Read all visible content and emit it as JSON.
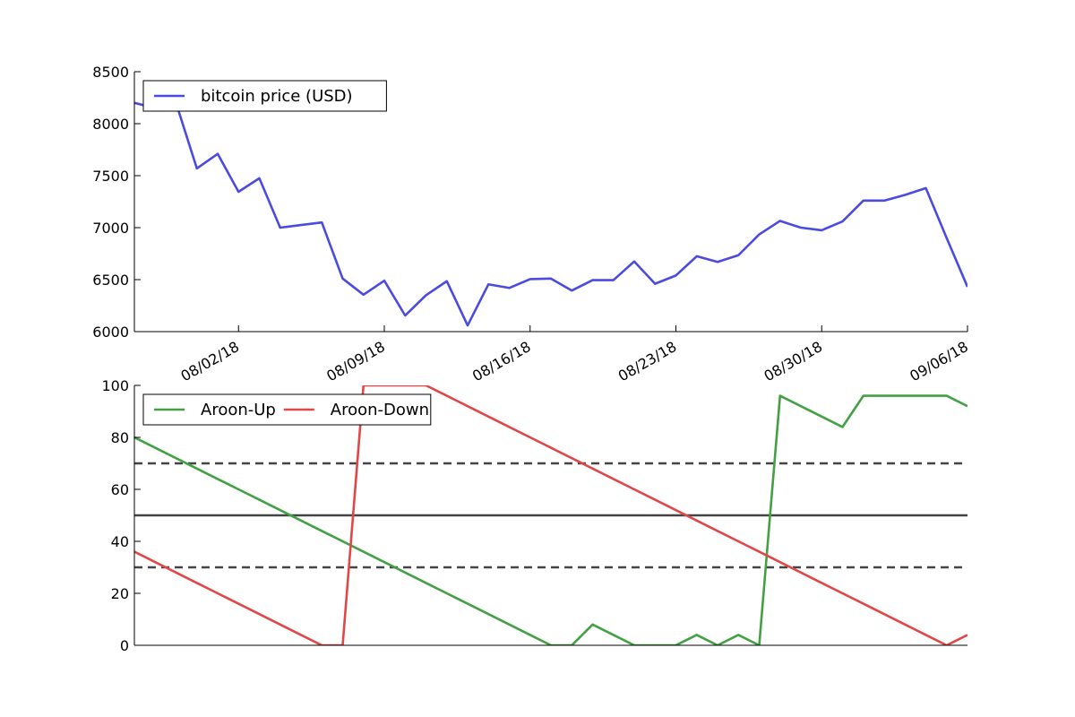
{
  "chart_data": [
    {
      "type": "line",
      "xlim": [
        "2018-07-28",
        "2018-09-06"
      ],
      "ylim": [
        6000,
        8500
      ],
      "y_ticks": [
        6000,
        6500,
        7000,
        7500,
        8000,
        8500
      ],
      "x_ticks": [
        "2018-08-02",
        "2018-08-09",
        "2018-08-16",
        "2018-08-23",
        "2018-08-30",
        "2018-09-06"
      ],
      "x_tick_labels": [
        "08/02/18",
        "08/09/18",
        "08/16/18",
        "08/23/18",
        "08/30/18",
        "09/06/18"
      ],
      "legend_position": "top-left",
      "grid": false,
      "x": [
        "2018-07-28",
        "2018-07-29",
        "2018-07-30",
        "2018-07-31",
        "2018-08-01",
        "2018-08-02",
        "2018-08-03",
        "2018-08-04",
        "2018-08-05",
        "2018-08-06",
        "2018-08-07",
        "2018-08-08",
        "2018-08-09",
        "2018-08-10",
        "2018-08-11",
        "2018-08-12",
        "2018-08-13",
        "2018-08-14",
        "2018-08-15",
        "2018-08-16",
        "2018-08-17",
        "2018-08-18",
        "2018-08-19",
        "2018-08-20",
        "2018-08-21",
        "2018-08-22",
        "2018-08-23",
        "2018-08-24",
        "2018-08-25",
        "2018-08-26",
        "2018-08-27",
        "2018-08-28",
        "2018-08-29",
        "2018-08-30",
        "2018-08-31",
        "2018-09-01",
        "2018-09-02",
        "2018-09-03",
        "2018-09-04",
        "2018-09-05",
        "2018-09-06"
      ],
      "series": [
        {
          "name": "bitcoin price (USD)",
          "color": "#4b4bdf",
          "values": [
            8200,
            8150,
            8200,
            7570,
            7710,
            7345,
            7475,
            7000,
            7025,
            7050,
            6510,
            6355,
            6490,
            6155,
            6350,
            6485,
            6060,
            6455,
            6420,
            6505,
            6510,
            6395,
            6495,
            6495,
            6675,
            6460,
            6540,
            6725,
            6670,
            6735,
            6935,
            7065,
            7000,
            6975,
            7060,
            7260,
            7260,
            7315,
            7380,
            6900,
            6430
          ]
        }
      ]
    },
    {
      "type": "line",
      "xlim": [
        "2018-07-28",
        "2018-09-06"
      ],
      "ylim": [
        0,
        100
      ],
      "y_ticks": [
        0,
        20,
        40,
        60,
        80,
        100
      ],
      "legend_position": "top-left",
      "grid": false,
      "reference_lines": [
        {
          "y": 70,
          "style": "dashed",
          "color": "#444444"
        },
        {
          "y": 50,
          "style": "solid",
          "color": "#444444"
        },
        {
          "y": 30,
          "style": "dashed",
          "color": "#444444"
        }
      ],
      "x": [
        "2018-07-28",
        "2018-07-29",
        "2018-07-30",
        "2018-07-31",
        "2018-08-01",
        "2018-08-02",
        "2018-08-03",
        "2018-08-04",
        "2018-08-05",
        "2018-08-06",
        "2018-08-07",
        "2018-08-08",
        "2018-08-09",
        "2018-08-10",
        "2018-08-11",
        "2018-08-12",
        "2018-08-13",
        "2018-08-14",
        "2018-08-15",
        "2018-08-16",
        "2018-08-17",
        "2018-08-18",
        "2018-08-19",
        "2018-08-20",
        "2018-08-21",
        "2018-08-22",
        "2018-08-23",
        "2018-08-24",
        "2018-08-25",
        "2018-08-26",
        "2018-08-27",
        "2018-08-28",
        "2018-08-29",
        "2018-08-30",
        "2018-08-31",
        "2018-09-01",
        "2018-09-02",
        "2018-09-03",
        "2018-09-04",
        "2018-09-05",
        "2018-09-06"
      ],
      "series": [
        {
          "name": "Aroon-Up",
          "color": "#44a044",
          "values": [
            80,
            76,
            72,
            68,
            64,
            60,
            56,
            52,
            48,
            44,
            40,
            36,
            32,
            28,
            24,
            20,
            16,
            12,
            8,
            4,
            0,
            0,
            8,
            4,
            0,
            0,
            0,
            4,
            0,
            4,
            0,
            96,
            92,
            88,
            84,
            96,
            96,
            96,
            96,
            96,
            92
          ]
        },
        {
          "name": "Aroon-Down",
          "color": "#e04848",
          "values": [
            36,
            32,
            28,
            24,
            20,
            16,
            12,
            8,
            4,
            0,
            0,
            100,
            100,
            100,
            100,
            96,
            92,
            88,
            84,
            80,
            76,
            72,
            68,
            64,
            60,
            56,
            52,
            48,
            44,
            40,
            36,
            32,
            28,
            24,
            20,
            16,
            12,
            8,
            4,
            0,
            4
          ]
        }
      ]
    }
  ]
}
